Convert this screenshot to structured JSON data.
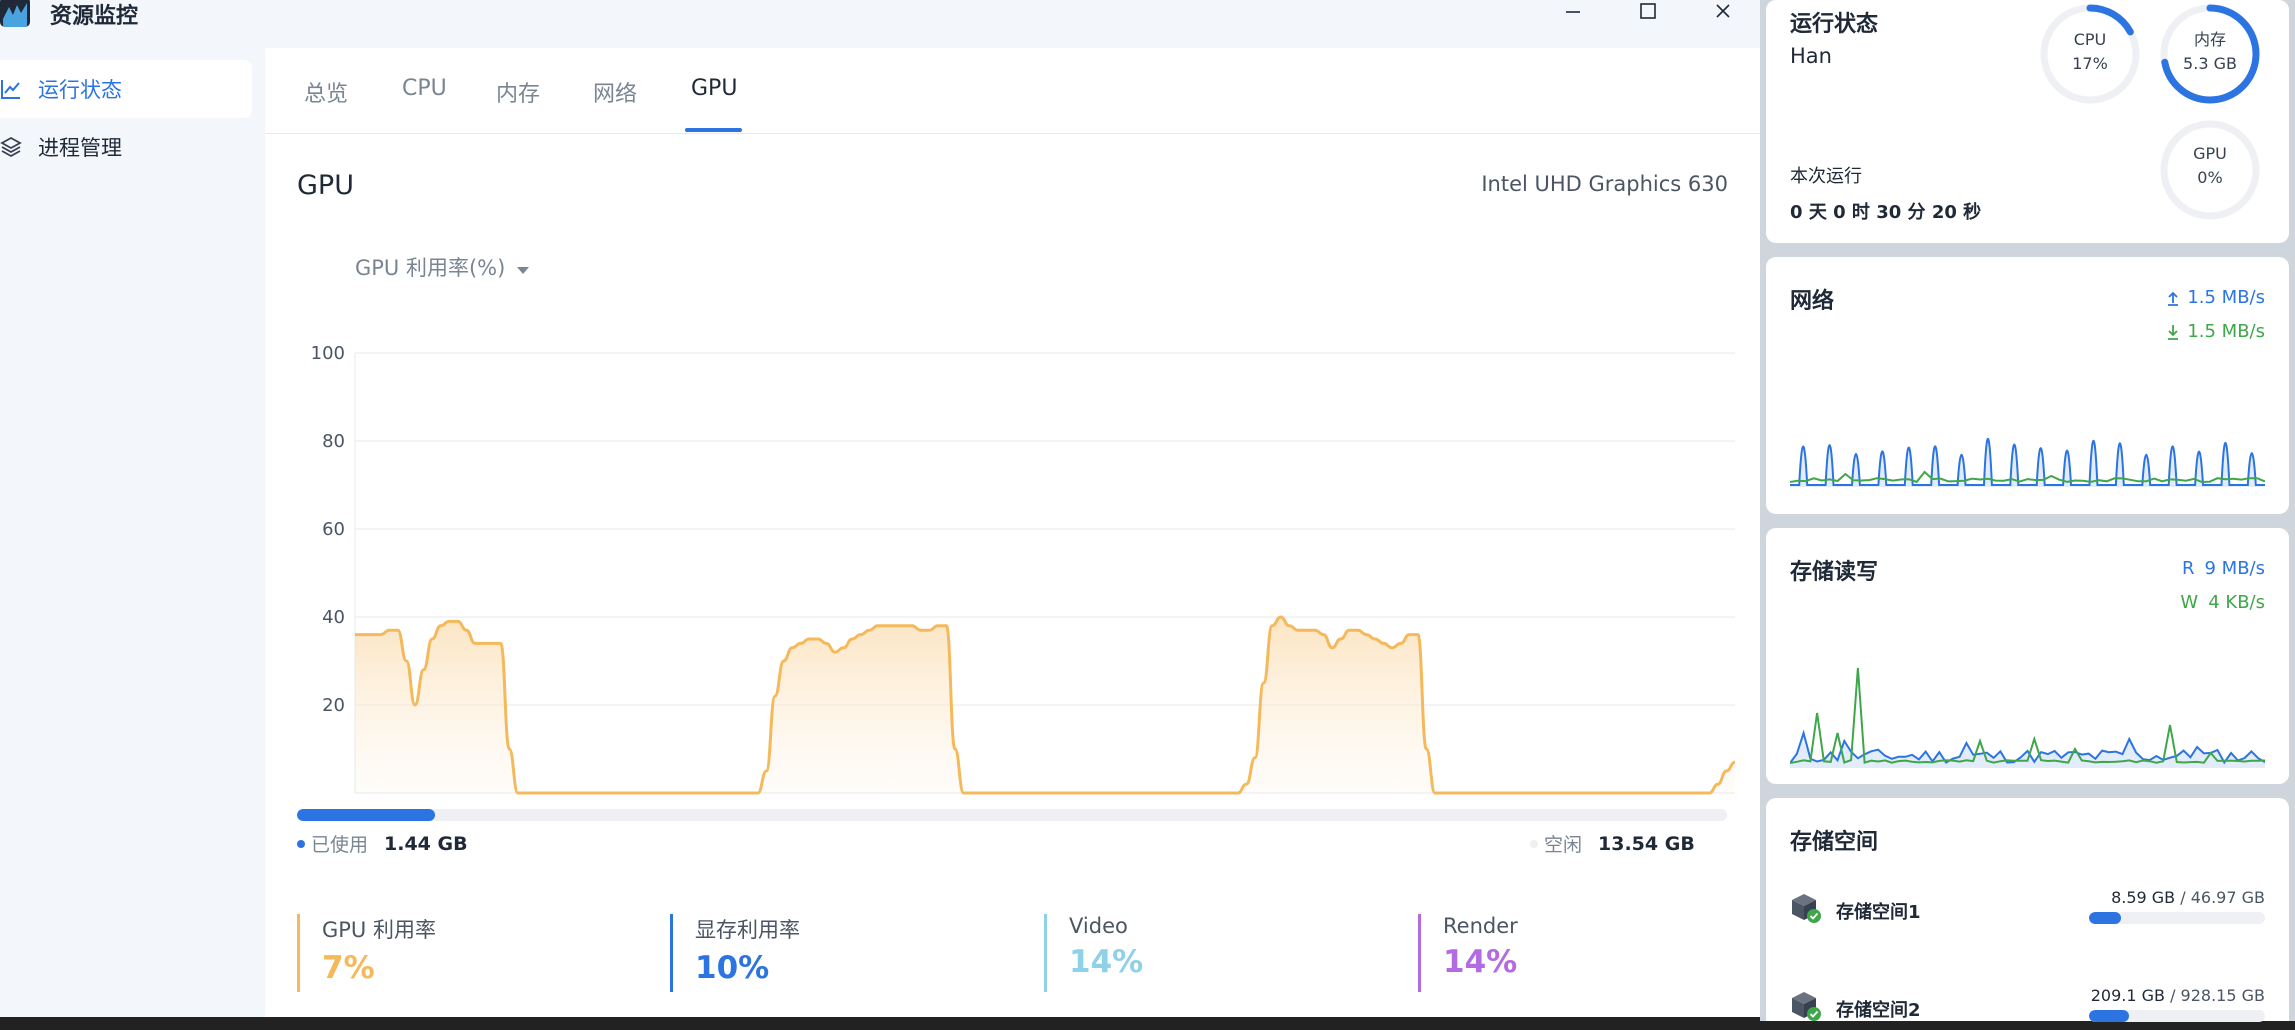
{
  "app": {
    "title": "资源监控"
  },
  "colors": {
    "accent": "#2b74e2",
    "gpu": "#f5b95c",
    "vram": "#2b74e2",
    "video": "#8fd1e8",
    "render": "#b36be3",
    "green": "#3fa64a"
  },
  "sidebar": {
    "items": [
      {
        "label": "运行状态",
        "icon": "line-chart-icon",
        "active": true
      },
      {
        "label": "进程管理",
        "icon": "layers-icon",
        "active": false
      }
    ]
  },
  "tabs": [
    {
      "label": "总览"
    },
    {
      "label": "CPU"
    },
    {
      "label": "内存"
    },
    {
      "label": "网络"
    },
    {
      "label": "GPU",
      "active": true
    }
  ],
  "gpu": {
    "section_title": "GPU",
    "model": "Intel UHD Graphics 630",
    "metric_select": "GPU 利用率(%)",
    "memory": {
      "used_label": "已使用",
      "used_value": "1.44 GB",
      "free_label": "空闲",
      "free_value": "13.54 GB",
      "used_fraction": 0.0962
    },
    "stats": [
      {
        "label": "GPU 利用率",
        "value": "7%"
      },
      {
        "label": "显存利用率",
        "value": "10%"
      },
      {
        "label": "Video",
        "value": "14%"
      },
      {
        "label": "Render",
        "value": "14%"
      }
    ]
  },
  "chart_data": {
    "type": "area",
    "title": "GPU 利用率(%)",
    "xlabel": "",
    "ylabel": "",
    "ylim": [
      0,
      100
    ],
    "yticks": [
      "100",
      "80",
      "60",
      "40",
      "20"
    ],
    "series": [
      {
        "name": "GPU 利用率",
        "values": [
          36,
          36,
          36,
          36,
          37,
          37,
          30,
          20,
          28,
          35,
          38,
          39,
          39,
          37,
          34,
          34,
          34,
          34,
          10,
          0,
          0,
          0,
          0,
          0,
          0,
          0,
          0,
          0,
          0,
          0,
          0,
          0,
          0,
          0,
          0,
          0,
          0,
          0,
          0,
          0,
          0,
          0,
          0,
          0,
          0,
          0,
          0,
          0,
          5,
          22,
          30,
          33,
          34,
          35,
          35,
          34,
          32,
          33,
          35,
          36,
          37,
          38,
          38,
          38,
          38,
          38,
          37,
          37,
          38,
          38,
          10,
          0,
          0,
          0,
          0,
          0,
          0,
          0,
          0,
          0,
          0,
          0,
          0,
          0,
          0,
          0,
          0,
          0,
          0,
          0,
          0,
          0,
          0,
          0,
          0,
          0,
          0,
          0,
          0,
          0,
          0,
          0,
          0,
          0,
          2,
          8,
          25,
          38,
          40,
          38,
          37,
          37,
          37,
          36,
          33,
          35,
          37,
          37,
          36,
          35,
          34,
          33,
          34,
          36,
          36,
          10,
          0,
          0,
          0,
          0,
          0,
          0,
          0,
          0,
          0,
          0,
          0,
          0,
          0,
          0,
          0,
          0,
          0,
          0,
          0,
          0,
          0,
          0,
          0,
          0,
          0,
          0,
          0,
          0,
          0,
          0,
          0,
          0,
          0,
          2,
          5,
          7
        ]
      }
    ]
  },
  "status_card": {
    "title": "运行状态",
    "host": "Han",
    "uptime_label": "本次运行",
    "uptime": {
      "d": "0",
      "d_u": "天",
      "h": "0",
      "h_u": "时",
      "m": "30",
      "m_u": "分",
      "s": "20",
      "s_u": "秒"
    },
    "rings": [
      {
        "name": "CPU",
        "value": "17%",
        "fraction": 0.17
      },
      {
        "name": "内存",
        "value": "5.3 GB",
        "fraction": 0.72
      },
      {
        "name": "GPU",
        "value": "0%",
        "fraction": 0.0
      }
    ]
  },
  "network_card": {
    "title": "网络",
    "up": "1.5 MB/s",
    "down": "1.5 MB/s"
  },
  "disk_card": {
    "title": "存储读写",
    "read_label": "R",
    "read": "9 MB/s",
    "write_label": "W",
    "write": "4 KB/s"
  },
  "storage_card": {
    "title": "存储空间",
    "items": [
      {
        "name": "存储空间1",
        "used": "8.59 GB",
        "total": "46.97 GB",
        "fraction": 0.183
      },
      {
        "name": "存储空间2",
        "used": "209.1 GB",
        "total": "928.15 GB",
        "fraction": 0.225
      }
    ]
  }
}
